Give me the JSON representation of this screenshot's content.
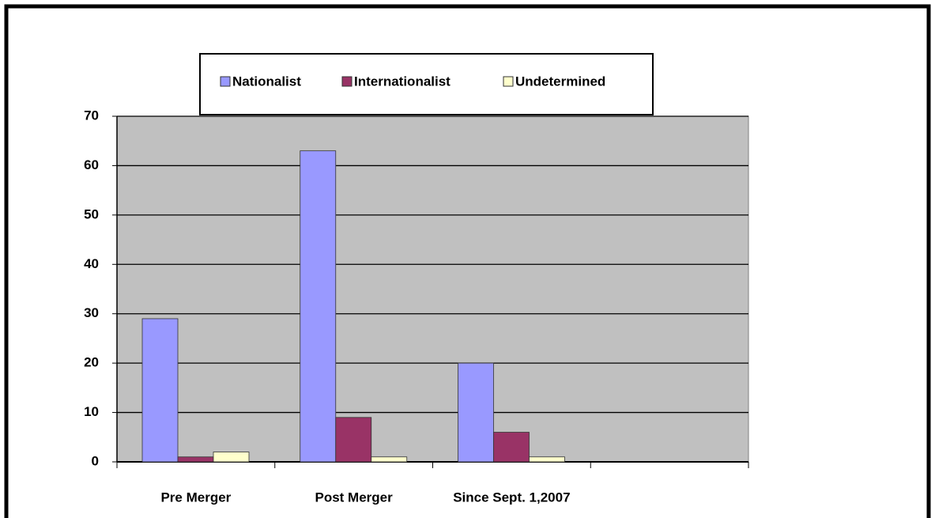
{
  "chart_data": {
    "type": "bar",
    "categories": [
      "Pre Merger",
      "Post Merger",
      "Since Sept. 1,2007",
      null
    ],
    "series": [
      {
        "name": "Nationalist",
        "color": "#9999ff",
        "values": [
          29,
          63,
          20,
          null
        ]
      },
      {
        "name": "Internationalist",
        "color": "#993366",
        "values": [
          1,
          9,
          6,
          null
        ]
      },
      {
        "name": "Undetermined",
        "color": "#ffffcc",
        "values": [
          2,
          1,
          1,
          null
        ]
      }
    ],
    "ylim": [
      0,
      70
    ],
    "yticks": [
      0,
      10,
      20,
      30,
      40,
      50,
      60,
      70
    ],
    "grid": true,
    "legend": "top"
  }
}
